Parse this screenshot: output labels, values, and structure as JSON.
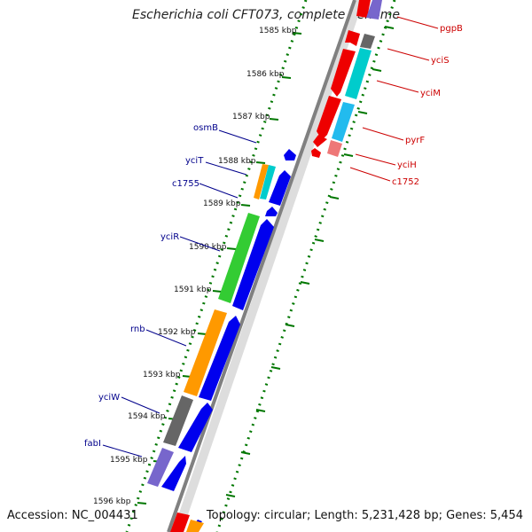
{
  "title": "Escherichia coli CFT073, complete genome",
  "accession": "Accession: NC_004431",
  "topology": "Topology: circular; Length: 5,231,428 bp; Genes: 5,454",
  "colors": {
    "backbone": "#808080",
    "tick": "#007700",
    "label_left": "#00008b",
    "label_right": "#cc0000",
    "orf_forward": "#0000ee",
    "orf_reverse": "#ee0000",
    "cog_green": "#33cc33",
    "cog_orange": "#ff9900",
    "cog_grey": "#666666",
    "cog_purple": "#7766cc",
    "cog_cyan": "#00cccc",
    "cog_skyblue": "#22bbee",
    "cog_pink": "#ee7777"
  },
  "ticks": [
    "1585 kbp",
    "1586 kbp",
    "1587 kbp",
    "1588 kbp",
    "1589 kbp",
    "1590 kbp",
    "1591 kbp",
    "1592 kbp",
    "1593 kbp",
    "1594 kbp",
    "1595 kbp",
    "1596 kbp"
  ],
  "genes_left": [
    "osmB",
    "yciT",
    "c1755",
    "yciR",
    "rnb",
    "yciW",
    "fabI"
  ],
  "genes_right": [
    "pgpB",
    "yciS",
    "yciM",
    "pyrF",
    "yciH",
    "c1752"
  ]
}
